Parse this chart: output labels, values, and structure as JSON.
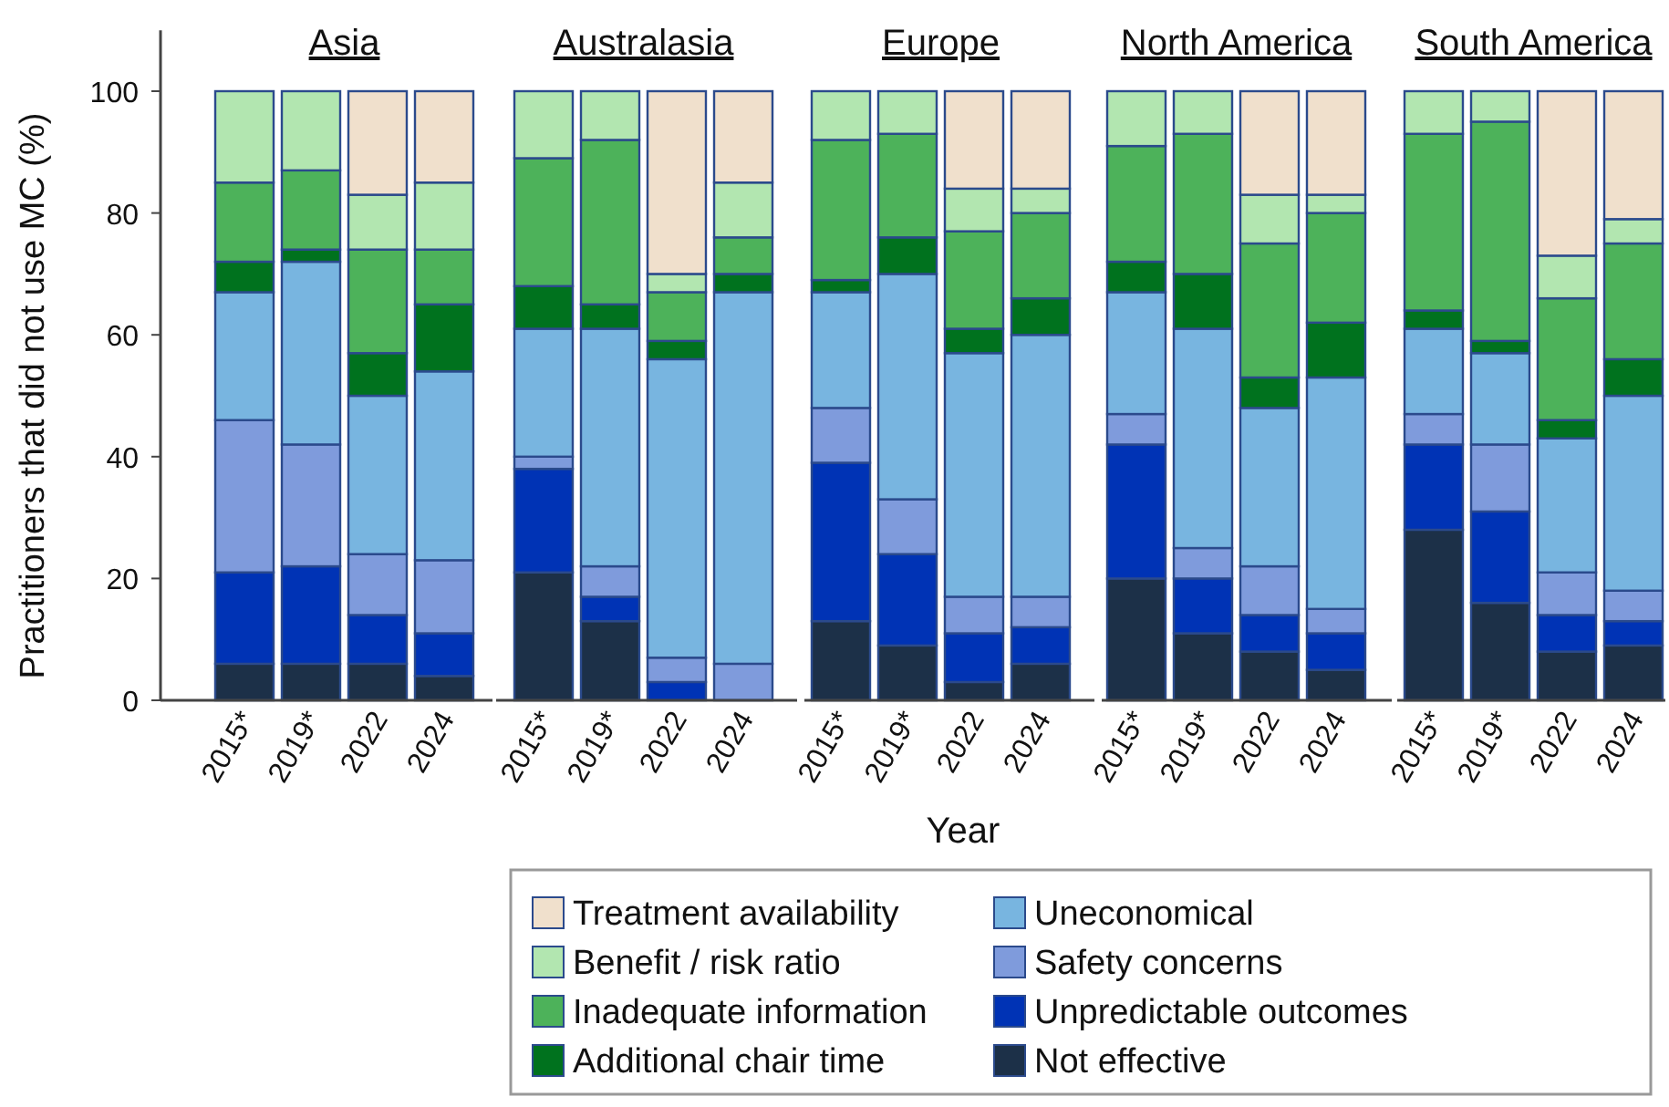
{
  "chart_data": {
    "type": "bar",
    "stacked": true,
    "ylabel": "Practitioners that did not use MC (%)",
    "xlabel": "Year",
    "annotations": [
      "Asia",
      "Australasia",
      "Europe",
      "North America",
      "South America"
    ],
    "categories": [
      "2015*",
      "2019*",
      "2022",
      "2024",
      "2015*",
      "2019*",
      "2022",
      "2024",
      "2015*",
      "2019*",
      "2022",
      "2024",
      "2015*",
      "2019*",
      "2022",
      "2024",
      "2015*",
      "2019*",
      "2022",
      "2024"
    ],
    "ylim": [
      0,
      110
    ],
    "yticks": [
      0,
      20,
      40,
      60,
      80,
      100
    ],
    "legend": "bottom",
    "series": [
      {
        "name": "Not effective",
        "color": "#1c3048",
        "values": [
          6,
          6,
          6,
          4,
          21,
          13,
          0,
          0,
          13,
          9,
          3,
          6,
          20,
          11,
          8,
          5,
          28,
          16,
          8,
          9
        ]
      },
      {
        "name": "Unpredictable outcomes",
        "color": "#0033b5",
        "values": [
          15,
          16,
          8,
          7,
          17,
          4,
          3,
          0,
          26,
          15,
          8,
          6,
          22,
          9,
          6,
          6,
          14,
          15,
          6,
          4
        ]
      },
      {
        "name": "Safety concerns",
        "color": "#7f9bdc",
        "values": [
          25,
          20,
          10,
          12,
          2,
          5,
          4,
          6,
          9,
          9,
          6,
          5,
          5,
          5,
          8,
          4,
          5,
          11,
          7,
          5
        ]
      },
      {
        "name": "Uneconomical",
        "color": "#78b5e0",
        "values": [
          21,
          30,
          26,
          31,
          21,
          39,
          49,
          61,
          19,
          37,
          40,
          43,
          20,
          36,
          26,
          38,
          14,
          15,
          22,
          32
        ]
      },
      {
        "name": "Additional chair time",
        "color": "#00721e",
        "values": [
          5,
          2,
          7,
          11,
          7,
          4,
          3,
          3,
          2,
          6,
          4,
          6,
          5,
          9,
          5,
          9,
          3,
          2,
          3,
          6
        ]
      },
      {
        "name": "Inadequate information",
        "color": "#4db25a",
        "values": [
          13,
          13,
          17,
          9,
          21,
          27,
          8,
          6,
          23,
          17,
          16,
          14,
          19,
          23,
          22,
          18,
          29,
          36,
          20,
          19
        ]
      },
      {
        "name": "Benefit / risk ratio",
        "color": "#b2e6b0",
        "values": [
          15,
          13,
          9,
          11,
          11,
          8,
          3,
          9,
          8,
          7,
          7,
          4,
          9,
          7,
          8,
          3,
          7,
          5,
          7,
          4
        ]
      },
      {
        "name": "Treatment availability",
        "color": "#f0e0cc",
        "values": [
          0,
          0,
          17,
          15,
          0,
          0,
          30,
          15,
          0,
          0,
          16,
          16,
          0,
          0,
          17,
          17,
          0,
          0,
          27,
          21
        ]
      }
    ]
  }
}
